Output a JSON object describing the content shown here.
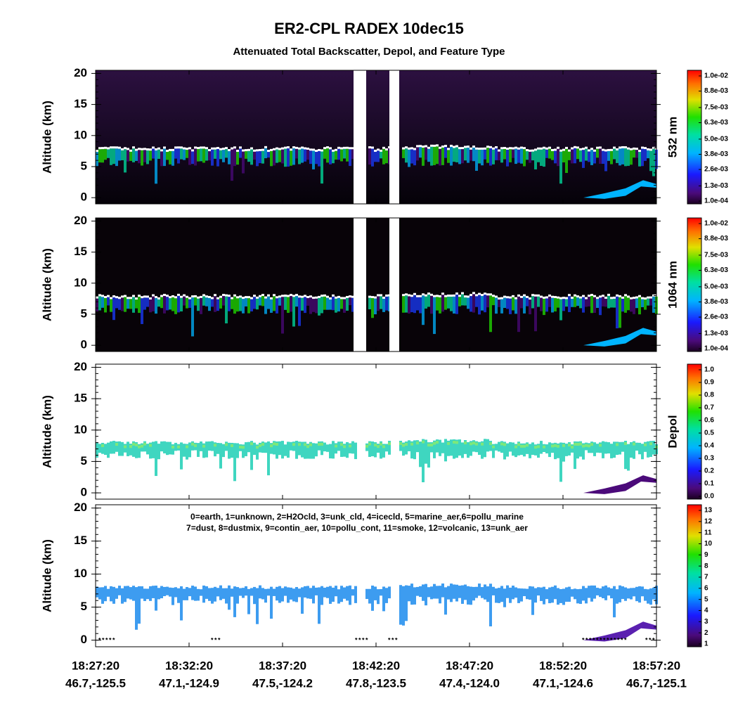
{
  "title": "ER2-CPL RADEX 10dec15",
  "subtitle": "Attenuated Total Backscatter, Depol, and Feature Type",
  "ylim": [
    -1,
    20.5
  ],
  "yticks": [
    0,
    5,
    10,
    15,
    20
  ],
  "panels": [
    {
      "ylabel": "Altitude (km)",
      "colorbar_label": "532 nm",
      "clim": [
        0.0001,
        0.01
      ],
      "colorbar_ticks": [
        {
          "value": 0.0001,
          "label": "1.0e-04"
        },
        {
          "value": 0.0013,
          "label": "1.3e-03"
        },
        {
          "value": 0.0026,
          "label": "2.6e-03"
        },
        {
          "value": 0.0038,
          "label": "3.8e-03"
        },
        {
          "value": 0.005,
          "label": "5.0e-03"
        },
        {
          "value": 0.0063,
          "label": "6.3e-03"
        },
        {
          "value": 0.0075,
          "label": "7.5e-03"
        },
        {
          "value": 0.0088,
          "label": "8.8e-03"
        },
        {
          "value": 0.01,
          "label": "1.0e-02"
        }
      ]
    },
    {
      "ylabel": "Altitude (km)",
      "colorbar_label": "1064 nm",
      "clim": [
        0.0001,
        0.01
      ],
      "colorbar_ticks": [
        {
          "value": 0.0001,
          "label": "1.0e-04"
        },
        {
          "value": 0.0013,
          "label": "1.3e-03"
        },
        {
          "value": 0.0026,
          "label": "2.6e-03"
        },
        {
          "value": 0.0038,
          "label": "3.8e-03"
        },
        {
          "value": 0.005,
          "label": "5.0e-03"
        },
        {
          "value": 0.0063,
          "label": "6.3e-03"
        },
        {
          "value": 0.0075,
          "label": "7.5e-03"
        },
        {
          "value": 0.0088,
          "label": "8.8e-03"
        },
        {
          "value": 0.01,
          "label": "1.0e-02"
        }
      ]
    },
    {
      "ylabel": "Altitude (km)",
      "colorbar_label": "Depol",
      "clim": [
        0,
        1
      ],
      "colorbar_ticks": [
        {
          "value": 0,
          "label": "0.0"
        },
        0.1,
        0.2,
        0.3,
        0.4,
        0.5,
        0.6,
        0.7,
        0.8,
        0.9,
        {
          "value": 1,
          "label": "1.0"
        }
      ]
    },
    {
      "ylabel": "Altitude (km)",
      "clim": [
        1,
        13
      ],
      "colorbar_ticks": [
        1,
        2,
        3,
        4,
        5,
        6,
        7,
        8,
        9,
        10,
        11,
        12,
        13
      ],
      "legend": [
        "0=earth, 1=unknown, 2=H2Ocld, 3=unk_cld, 4=icecld, 5=marine_aer,6=pollu_marine",
        "7=dust, 8=dustmix, 9=contin_aer, 10=pollu_cont, 11=smoke, 12=volcanic, 13=unk_aer"
      ]
    }
  ],
  "xticks": [
    {
      "time": "18:27:20",
      "position": "46.7,-125.5"
    },
    {
      "time": "18:32:20",
      "position": "47.1,-124.9"
    },
    {
      "time": "18:37:20",
      "position": "47.5,-124.2"
    },
    {
      "time": "18:42:20",
      "position": "47.8,-123.5"
    },
    {
      "time": "18:47:20",
      "position": "47.4,-124.0"
    },
    {
      "time": "18:52:20",
      "position": "47.1,-124.6"
    },
    {
      "time": "18:57:20",
      "position": "46.7,-125.1"
    }
  ]
}
